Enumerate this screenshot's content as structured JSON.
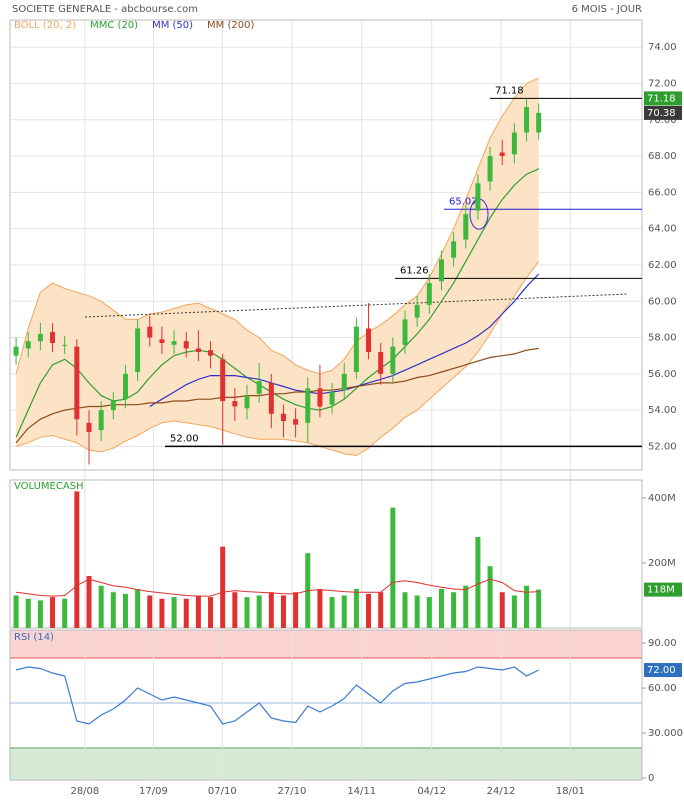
{
  "chart_data": [
    {
      "type": "candlestick",
      "title": "SOCIETE GENERALE - abcbourse.com",
      "subtitle": "6 MOIS - JOUR",
      "up_color": "#3cb83c",
      "down_color": "#e03030",
      "open": [
        57.0,
        57.4,
        57.8,
        58.3,
        57.6,
        57.5,
        53.3,
        52.9,
        54.0,
        54.6,
        56.1,
        58.6,
        57.9,
        57.6,
        57.8,
        57.4,
        57.3,
        56.8,
        54.5,
        54.1,
        54.9,
        55.5,
        53.8,
        53.5,
        53.3,
        55.2,
        54.3,
        55.1,
        56.1,
        58.5,
        57.2,
        56.0,
        57.6,
        59.1,
        59.8,
        61.1,
        62.4,
        63.4,
        65.0,
        66.6,
        68.2,
        68.1,
        69.3,
        69.3
      ],
      "high": [
        58.0,
        58.3,
        58.8,
        58.8,
        58.1,
        57.9,
        54.0,
        54.5,
        55.0,
        56.5,
        59.0,
        59.2,
        58.6,
        58.4,
        58.3,
        58.4,
        57.8,
        57.1,
        55.2,
        55.4,
        56.6,
        56.0,
        54.3,
        54.1,
        55.8,
        56.5,
        55.5,
        56.6,
        59.1,
        59.9,
        57.7,
        58.0,
        59.5,
        60.3,
        61.5,
        62.8,
        63.8,
        65.3,
        67.0,
        68.5,
        68.9,
        69.8,
        71.18,
        70.9
      ],
      "low": [
        56.5,
        56.9,
        57.3,
        57.2,
        57.1,
        52.6,
        51.0,
        52.3,
        53.5,
        54.1,
        55.6,
        57.5,
        57.1,
        57.1,
        56.9,
        56.7,
        56.3,
        52.1,
        53.4,
        53.5,
        54.4,
        53.0,
        52.5,
        52.5,
        52.2,
        53.6,
        53.8,
        54.6,
        55.7,
        56.8,
        55.4,
        55.5,
        57.1,
        58.6,
        59.3,
        60.6,
        61.9,
        62.9,
        64.5,
        66.1,
        67.5,
        67.6,
        68.8,
        68.9
      ],
      "close": [
        57.5,
        57.8,
        58.2,
        57.7,
        57.6,
        53.5,
        52.8,
        54.0,
        54.5,
        56.0,
        58.5,
        58.0,
        57.7,
        57.8,
        57.4,
        57.2,
        57.0,
        54.5,
        54.2,
        54.8,
        55.6,
        53.8,
        53.4,
        53.2,
        55.2,
        54.2,
        55.0,
        56.0,
        58.6,
        57.2,
        56.0,
        57.5,
        59.0,
        59.8,
        61.0,
        62.3,
        63.3,
        64.8,
        66.5,
        68.0,
        68.0,
        69.3,
        70.7,
        70.38
      ],
      "series": [
        {
          "name": "BOLL (20, 2)",
          "color": "#f2a65a",
          "upper": [
            56.0,
            58.5,
            60.5,
            61.0,
            60.7,
            60.5,
            60.3,
            60.0,
            59.5,
            59.0,
            59.0,
            59.3,
            59.4,
            59.6,
            59.8,
            59.9,
            59.6,
            59.3,
            59.0,
            58.4,
            58.0,
            57.3,
            57.0,
            56.5,
            56.2,
            56.0,
            56.2,
            56.8,
            57.8,
            58.3,
            58.7,
            59.2,
            59.8,
            60.3,
            61.3,
            62.6,
            64.0,
            65.6,
            67.3,
            69.0,
            70.2,
            71.2,
            72.0,
            72.3
          ],
          "lower": [
            52.0,
            52.2,
            52.5,
            52.6,
            52.4,
            52.2,
            51.8,
            51.7,
            51.9,
            52.3,
            52.6,
            53.0,
            53.3,
            53.4,
            53.3,
            53.2,
            53.1,
            52.9,
            52.7,
            52.5,
            52.4,
            52.4,
            52.4,
            52.3,
            52.2,
            52.0,
            51.8,
            51.6,
            51.5,
            51.9,
            52.5,
            53.0,
            53.6,
            54.0,
            54.6,
            55.2,
            55.8,
            56.4,
            57.2,
            58.2,
            59.3,
            60.3,
            61.3,
            62.2
          ]
        },
        {
          "name": "MMC (20)",
          "color": "#2ca02c",
          "values": [
            52.5,
            54.0,
            55.5,
            56.5,
            56.8,
            56.3,
            55.5,
            54.8,
            54.5,
            54.6,
            55.0,
            55.8,
            56.5,
            57.0,
            57.2,
            57.3,
            57.2,
            56.8,
            56.3,
            55.8,
            55.4,
            55.0,
            54.6,
            54.3,
            54.1,
            54.0,
            54.2,
            54.6,
            55.2,
            55.8,
            56.3,
            56.8,
            57.5,
            58.2,
            59.0,
            60.0,
            61.0,
            62.2,
            63.4,
            64.6,
            65.6,
            66.4,
            67.0,
            67.3
          ]
        },
        {
          "name": "MM (50)",
          "color": "#3333cc",
          "values": [
            null,
            null,
            null,
            null,
            null,
            null,
            null,
            null,
            null,
            null,
            null,
            54.2,
            54.6,
            55.0,
            55.4,
            55.7,
            55.9,
            55.9,
            55.9,
            55.8,
            55.7,
            55.5,
            55.3,
            55.1,
            55.0,
            54.9,
            55.0,
            55.1,
            55.3,
            55.5,
            55.7,
            55.9,
            56.2,
            56.5,
            56.8,
            57.1,
            57.4,
            57.7,
            58.1,
            58.6,
            59.3,
            60.0,
            60.8,
            61.5
          ]
        },
        {
          "name": "MM (200)",
          "color": "#8b4a1c",
          "values": [
            52.2,
            53.0,
            53.5,
            53.8,
            54.0,
            54.1,
            54.2,
            54.2,
            54.3,
            54.3,
            54.3,
            54.4,
            54.4,
            54.5,
            54.5,
            54.6,
            54.6,
            54.7,
            54.7,
            54.8,
            54.8,
            54.9,
            54.9,
            55.0,
            55.0,
            55.1,
            55.1,
            55.2,
            55.3,
            55.4,
            55.5,
            55.5,
            55.6,
            55.8,
            55.9,
            56.1,
            56.3,
            56.5,
            56.7,
            56.9,
            57.0,
            57.1,
            57.3,
            57.4
          ]
        }
      ],
      "levels": [
        {
          "value": 71.18,
          "color": "#000000"
        },
        {
          "value": 65.07,
          "color": "#2020d0"
        },
        {
          "value": 61.26,
          "color": "#000000"
        },
        {
          "value": 52,
          "label": "52.00",
          "color": "#000000"
        }
      ],
      "markers": [
        {
          "value": 71.18,
          "color": "#2e9e2e"
        },
        {
          "value": 70.38,
          "color": "#3a3a3a"
        }
      ],
      "ylim": [
        50.7,
        75.5
      ],
      "yticks": [
        {
          "value": 52,
          "label": "52.00"
        },
        {
          "value": 54,
          "label": "54.00"
        },
        {
          "value": 56,
          "label": "56.00"
        },
        {
          "value": 58,
          "label": "58.00"
        },
        {
          "value": 60,
          "label": "60.00"
        },
        {
          "value": 62,
          "label": "62.00"
        },
        {
          "value": 64,
          "label": "64.00"
        },
        {
          "value": 66,
          "label": "66.00"
        },
        {
          "value": 68,
          "label": "68.00"
        },
        {
          "value": 70,
          "label": "70.00"
        },
        {
          "value": 72,
          "label": "72.00"
        },
        {
          "value": 74,
          "label": "74.00"
        }
      ]
    },
    {
      "type": "bar",
      "title": "VOLUMECASH",
      "values": [
        100,
        90,
        85,
        95,
        90,
        420,
        160,
        130,
        110,
        105,
        120,
        100,
        90,
        95,
        90,
        100,
        95,
        250,
        110,
        95,
        100,
        110,
        100,
        110,
        230,
        120,
        95,
        100,
        120,
        105,
        110,
        370,
        110,
        100,
        95,
        120,
        110,
        130,
        280,
        190,
        110,
        100,
        130,
        118
      ],
      "ma": {
        "color": "#e03030",
        "values": [
          110,
          105,
          100,
          98,
          100,
          130,
          150,
          140,
          130,
          125,
          118,
          112,
          108,
          104,
          100,
          98,
          98,
          110,
          115,
          112,
          110,
          108,
          105,
          105,
          115,
          118,
          115,
          112,
          110,
          110,
          110,
          140,
          145,
          140,
          132,
          125,
          120,
          118,
          135,
          150,
          140,
          115,
          110,
          112
        ]
      },
      "markers": [
        {
          "value": 118,
          "label": "118M",
          "color": "#2e9e2e"
        }
      ],
      "ylim": [
        0,
        455
      ],
      "yticks": [
        {
          "value": 200,
          "label": "200M"
        },
        {
          "value": 400,
          "label": "400M"
        }
      ]
    },
    {
      "type": "line",
      "title": "RSI (14)",
      "color": "#3a7bd5",
      "values": [
        72,
        74,
        73,
        70,
        68,
        38,
        36,
        42,
        46,
        52,
        60,
        56,
        52,
        54,
        52,
        50,
        48,
        36,
        38,
        44,
        50,
        40,
        38,
        37,
        48,
        44,
        48,
        53,
        62,
        56,
        50,
        58,
        63,
        64,
        66,
        68,
        70,
        71,
        74,
        73,
        72,
        74,
        68,
        72
      ],
      "levels": [
        {
          "value": 80,
          "color": "#e05050"
        },
        {
          "value": 50,
          "color": "#9bb8e0"
        },
        {
          "value": 20,
          "color": "#5aa05a"
        }
      ],
      "markers": [
        {
          "value": 72,
          "label": "72.00",
          "color": "#2f6fc0"
        }
      ],
      "ylim": [
        -1.3,
        98.7
      ],
      "yticks": [
        0,
        {
          "value": 30,
          "label": "30.000"
        },
        {
          "value": 60,
          "label": "60.00"
        },
        {
          "value": 90,
          "label": "90.00"
        }
      ],
      "xlim": [
        -0.5,
        51.5
      ],
      "xticks": [
        {
          "value": 5.66,
          "label": "28/08"
        },
        {
          "value": 11.3,
          "label": "17/09"
        },
        {
          "value": 16.97,
          "label": "07/10"
        },
        {
          "value": 22.7,
          "label": "27/10"
        },
        {
          "value": 28.44,
          "label": "14/11"
        },
        {
          "value": 34.2,
          "label": "04/12"
        },
        {
          "value": 39.9,
          "label": "24/12"
        },
        {
          "value": 45.6,
          "label": "18/01"
        }
      ]
    }
  ]
}
